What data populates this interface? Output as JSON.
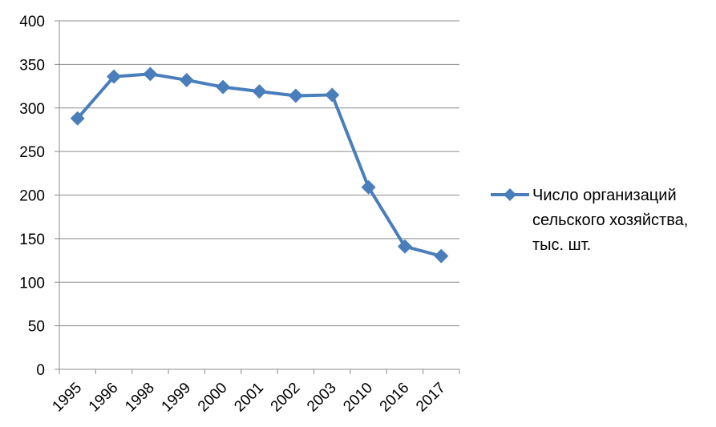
{
  "chart_data": {
    "type": "line",
    "categories": [
      "1995",
      "1996",
      "1998",
      "1999",
      "2000",
      "2001",
      "2002",
      "2003",
      "2010",
      "2016",
      "2017"
    ],
    "series": [
      {
        "name": "Число организаций сельского хозяйства, тыс. шт.",
        "name_lines": [
          "Число организаций",
          "сельского хозяйства,",
          "тыс. шт."
        ],
        "values": [
          288,
          336,
          339,
          332,
          324,
          319,
          314,
          315,
          209,
          141,
          130
        ],
        "color": "#4a7ebb",
        "marker": "diamond"
      }
    ],
    "ylim": [
      0,
      400
    ],
    "yticks": [
      "0",
      "50",
      "100",
      "150",
      "200",
      "250",
      "300",
      "350",
      "400"
    ],
    "grid": true,
    "legend_position": "right"
  }
}
